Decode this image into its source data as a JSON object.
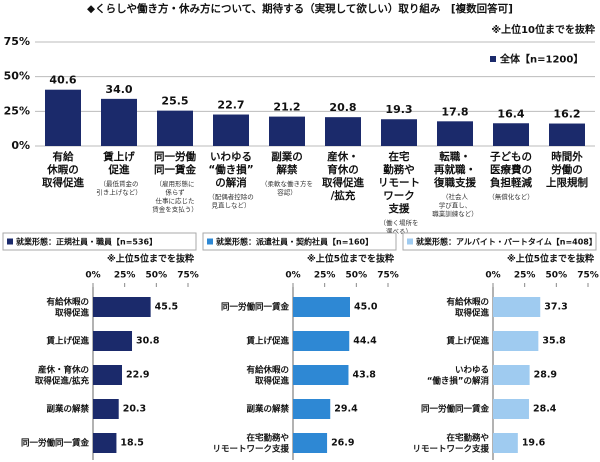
{
  "chart_data": [
    {
      "type": "bar",
      "orientation": "vertical",
      "title": "◆くらしや働き方・休み方について、期待する（実現して欲しい）取り組み　[複数回答可]",
      "note": "※上位10位までを抜粋",
      "categories": [
        "有給\n休暇の\n取得促進",
        "賃上げ\n促進",
        "同一労働\n同一賃金",
        "いわゆる\n“働き損”\nの解消",
        "副業の\n解禁",
        "産休・\n育休の\n取得促進\n/拡充",
        "在宅\n勤務や\nリモート\nワーク\n支援",
        "転職・\n再就職・\n復職支援",
        "子どもの\n医療費の\n負担軽減",
        "時間外\n労働の\n上限規制"
      ],
      "category_notes": [
        null,
        "（最低賃金の\n引き上げなど）",
        "（雇用形態に\n係らず\n仕事に応じた\n賃金を支払う）",
        "（配偶者控除の\n見直しなど）",
        "（柔軟な働き方を\n容認）",
        null,
        "（働く場所を\n選べる）",
        "（社会人\n学び直し、\n職業訓練など）",
        "（無償化など）",
        null
      ],
      "series": [
        {
          "name": "全体【n=1200】",
          "color": "#1b2a6b",
          "values": [
            40.6,
            34.0,
            25.5,
            22.7,
            21.2,
            20.8,
            19.3,
            17.8,
            16.4,
            16.2
          ],
          "value_labels": [
            "40.6",
            "34.0",
            "25.5",
            "22.7",
            "21.2",
            "20.8",
            "19.3",
            "17.8",
            "16.4",
            "16.2"
          ]
        }
      ],
      "ylim": [
        0,
        75
      ],
      "yticks": [
        {
          "value": 0,
          "label": "0%"
        },
        {
          "value": 25,
          "label": "25%"
        },
        {
          "value": 50,
          "label": "50%"
        },
        {
          "value": 75,
          "label": "75%"
        }
      ],
      "grid": true,
      "legend": "top-right"
    },
    {
      "type": "bar",
      "orientation": "horizontal",
      "note": "※上位5位までを抜粋",
      "categories": [
        "有給休暇の\n取得促進",
        "賃上げ促進",
        "産休・育休の\n取得促進/拡充",
        "副業の解禁",
        "同一労働同一賃金"
      ],
      "series": [
        {
          "name": "就業形態：正規社員・職員【n=536】",
          "color": "#1b2a6b",
          "values": [
            45.5,
            30.8,
            22.9,
            20.3,
            18.5
          ],
          "value_labels": [
            "45.5",
            "30.8",
            "22.9",
            "20.3",
            "18.5"
          ]
        }
      ],
      "xlim": [
        0,
        75
      ],
      "xticks": [
        {
          "value": 0,
          "label": "0%"
        },
        {
          "value": 25,
          "label": "25%"
        },
        {
          "value": 50,
          "label": "50%"
        },
        {
          "value": 75,
          "label": "75%"
        }
      ]
    },
    {
      "type": "bar",
      "orientation": "horizontal",
      "note": "※上位5位までを抜粋",
      "categories": [
        "同一労働同一賃金",
        "賃上げ促進",
        "有給休暇の\n取得促進",
        "副業の解禁",
        "在宅勤務や\nリモートワーク支援"
      ],
      "series": [
        {
          "name": "就業形態：派遣社員・契約社員【n=160】",
          "color": "#2e88d4",
          "values": [
            45.0,
            44.4,
            43.8,
            29.4,
            26.9
          ],
          "value_labels": [
            "45.0",
            "44.4",
            "43.8",
            "29.4",
            "26.9"
          ]
        }
      ],
      "xlim": [
        0,
        75
      ],
      "xticks": [
        {
          "value": 0,
          "label": "0%"
        },
        {
          "value": 25,
          "label": "25%"
        },
        {
          "value": 50,
          "label": "50%"
        },
        {
          "value": 75,
          "label": "75%"
        }
      ]
    },
    {
      "type": "bar",
      "orientation": "horizontal",
      "note": "※上位5位までを抜粋",
      "categories": [
        "有給休暇の\n取得促進",
        "賃上げ促進",
        "いわゆる\n“働き損”の解消",
        "同一労働同一賃金",
        "在宅勤務や\nリモートワーク支援"
      ],
      "series": [
        {
          "name": "就業形態：アルバイト・パートタイム【n=408】",
          "color": "#9fcbf0",
          "values": [
            37.3,
            35.8,
            28.9,
            28.4,
            19.6
          ],
          "value_labels": [
            "37.3",
            "35.8",
            "28.9",
            "28.4",
            "19.6"
          ]
        }
      ],
      "xlim": [
        0,
        75
      ],
      "xticks": [
        {
          "value": 0,
          "label": "0%"
        },
        {
          "value": 25,
          "label": "25%"
        },
        {
          "value": 50,
          "label": "50%"
        },
        {
          "value": 75,
          "label": "75%"
        }
      ]
    }
  ]
}
